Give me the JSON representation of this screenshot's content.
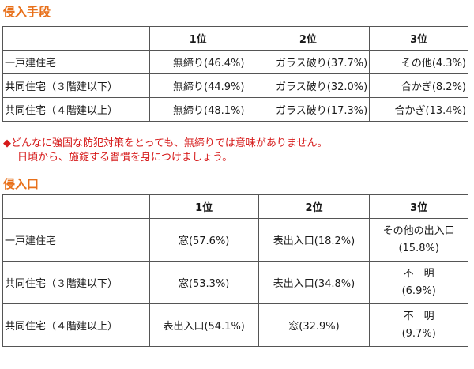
{
  "section1": {
    "title": "侵入手段",
    "headers": [
      "",
      "1位",
      "2位",
      "3位"
    ],
    "rows": [
      [
        "一戸建住宅",
        "無締り(46.4%)",
        "ガラス破り(37.7%)",
        "その他(4.3%)"
      ],
      [
        "共同住宅（３階建以下）",
        "無締り(44.9%)",
        "ガラス破り(32.0%)",
        "合かぎ(8.2%)"
      ],
      [
        "共同住宅（４階建以上）",
        "無締り(48.1%)",
        "ガラス破り(17.3%)",
        "合かぎ(13.4%)"
      ]
    ]
  },
  "note": {
    "line1": "どんなに強固な防犯対策をとっても、無締りでは意味がありません。",
    "line2": "日頃から、施錠する習慣を身につけましょう。",
    "marker": "◆"
  },
  "section2": {
    "title": "侵入口",
    "headers": [
      "",
      "1位",
      "2位",
      "3位"
    ],
    "rows": [
      [
        "一戸建住宅",
        "窓(57.6%)",
        "表出入口(18.2%)",
        "その他の出入口",
        "(15.8%)"
      ],
      [
        "共同住宅（３階建以下）",
        "窓(53.3%)",
        "表出入口(34.8%)",
        "不　明",
        "(6.9%)"
      ],
      [
        "共同住宅（４階建以上）",
        "表出入口(54.1%)",
        "窓(32.9%)",
        "不　明",
        "(9.7%)"
      ]
    ]
  },
  "colors": {
    "heading": "#e8701a",
    "note": "#d61a1a",
    "border": "#555555"
  }
}
